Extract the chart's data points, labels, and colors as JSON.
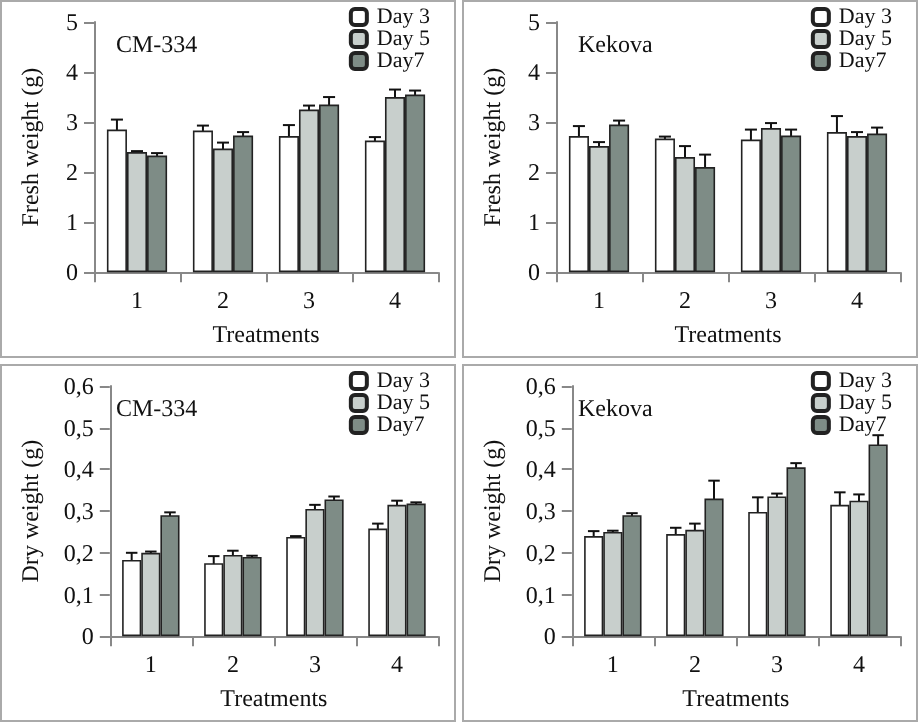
{
  "chart_data": [
    {
      "type": "bar",
      "title": "CM-334",
      "xlabel": "Treatments",
      "ylabel": "Fresh weight (g)",
      "categories": [
        "1",
        "2",
        "3",
        "4"
      ],
      "ylim": [
        0,
        5
      ],
      "yticks": [
        0,
        1,
        2,
        3,
        4,
        5
      ],
      "legend": "top right",
      "grid": false,
      "series": [
        {
          "name": "Day 3",
          "color": "#ffffff",
          "values": [
            2.85,
            2.83,
            2.72,
            2.63
          ],
          "errors": [
            0.2,
            0.1,
            0.22,
            0.07
          ]
        },
        {
          "name": "Day 5",
          "color": "#c8cfcc",
          "values": [
            2.4,
            2.47,
            3.25,
            3.5
          ],
          "errors": [
            0.02,
            0.12,
            0.08,
            0.15
          ]
        },
        {
          "name": "Day7",
          "color": "#7e8c86",
          "values": [
            2.33,
            2.73,
            3.35,
            3.55
          ],
          "errors": [
            0.05,
            0.07,
            0.15,
            0.08
          ]
        }
      ]
    },
    {
      "type": "bar",
      "title": "Kekova",
      "xlabel": "Treatments",
      "ylabel": "Fresh weight (g)",
      "categories": [
        "1",
        "2",
        "3",
        "4"
      ],
      "ylim": [
        0,
        5
      ],
      "yticks": [
        0,
        1,
        2,
        3,
        4,
        5
      ],
      "legend": "top right",
      "grid": false,
      "series": [
        {
          "name": "Day 3",
          "color": "#ffffff",
          "values": [
            2.72,
            2.67,
            2.65,
            2.8
          ],
          "errors": [
            0.2,
            0.04,
            0.2,
            0.32
          ]
        },
        {
          "name": "Day 5",
          "color": "#c8cfcc",
          "values": [
            2.52,
            2.3,
            2.88,
            2.72
          ],
          "errors": [
            0.08,
            0.22,
            0.1,
            0.08
          ]
        },
        {
          "name": "Day7",
          "color": "#7e8c86",
          "values": [
            2.95,
            2.1,
            2.73,
            2.77
          ],
          "errors": [
            0.08,
            0.25,
            0.12,
            0.12
          ]
        }
      ]
    },
    {
      "type": "bar",
      "title": "CM-334",
      "xlabel": "Treatments",
      "ylabel": "Dry weight (g)",
      "categories": [
        "1",
        "2",
        "3",
        "4"
      ],
      "ylim": [
        0,
        0.6
      ],
      "yticks": [
        0,
        {
          "value": 0.1,
          "label": "0,1"
        },
        {
          "value": 0.2,
          "label": "0,2"
        },
        {
          "value": 0.3,
          "label": "0,3"
        },
        {
          "value": 0.4,
          "label": "0,4"
        },
        {
          "value": 0.5,
          "label": "0,5"
        },
        {
          "value": 0.6,
          "label": "0,6"
        }
      ],
      "legend": "top right",
      "grid": false,
      "series": [
        {
          "name": "Day 3",
          "color": "#ffffff",
          "values": [
            0.183,
            0.175,
            0.238,
            0.258
          ],
          "errors": [
            0.017,
            0.017,
            0.002,
            0.012
          ]
        },
        {
          "name": "Day 5",
          "color": "#c8cfcc",
          "values": [
            0.2,
            0.195,
            0.305,
            0.315
          ],
          "errors": [
            0.003,
            0.01,
            0.01,
            0.01
          ]
        },
        {
          "name": "Day7",
          "color": "#7e8c86",
          "values": [
            0.29,
            0.19,
            0.328,
            0.318
          ],
          "errors": [
            0.007,
            0.003,
            0.007,
            0.003
          ]
        }
      ]
    },
    {
      "type": "bar",
      "title": "Kekova",
      "xlabel": "Treatments",
      "ylabel": "Dry weight (g)",
      "categories": [
        "1",
        "2",
        "3",
        "4"
      ],
      "ylim": [
        0,
        0.6
      ],
      "yticks": [
        0,
        {
          "value": 0.1,
          "label": "0,1"
        },
        {
          "value": 0.2,
          "label": "0,2"
        },
        {
          "value": 0.3,
          "label": "0,3"
        },
        {
          "value": 0.4,
          "label": "0,4"
        },
        {
          "value": 0.5,
          "label": "0,5"
        },
        {
          "value": 0.6,
          "label": "0,6"
        }
      ],
      "legend": "top right",
      "grid": false,
      "series": [
        {
          "name": "Day 3",
          "color": "#ffffff",
          "values": [
            0.24,
            0.245,
            0.298,
            0.315
          ],
          "errors": [
            0.012,
            0.015,
            0.035,
            0.03
          ]
        },
        {
          "name": "Day 5",
          "color": "#c8cfcc",
          "values": [
            0.25,
            0.255,
            0.335,
            0.325
          ],
          "errors": [
            0.003,
            0.015,
            0.007,
            0.015
          ]
        },
        {
          "name": "Day7",
          "color": "#7e8c86",
          "values": [
            0.29,
            0.33,
            0.405,
            0.46
          ],
          "errors": [
            0.005,
            0.043,
            0.01,
            0.022
          ]
        }
      ]
    }
  ]
}
